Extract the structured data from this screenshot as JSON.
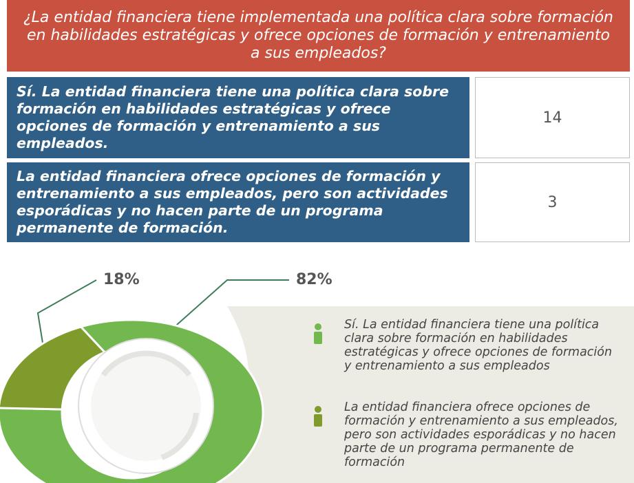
{
  "table": {
    "header": "¿La entidad financiera tiene implementada una política clara sobre formación en habilidades estratégicas y ofrece opciones de formación y entrenamiento a sus empleados?",
    "rows": [
      [
        "Sí. La entidad financiera tiene una política clara sobre formación en habilidades estratégicas y ofrece opciones de formación y entrenamiento a sus empleados.",
        14
      ],
      [
        "La entidad financiera ofrece opciones de formación y entrenamiento a sus empleados, pero son actividades esporádicas y no hacen parte de un programa permanente de formación.",
        3
      ]
    ]
  },
  "chart_data": {
    "type": "donut",
    "categories": [
      "Sí. La entidad financiera tiene una política clara sobre formación en habilidades estratégicas y ofrece opciones de formación y entrenamiento a sus empleados",
      "La entidad financiera ofrece opciones de formación y entrenamiento a sus empleados, pero son actividades esporádicas y no hacen parte de un programa permanente de formación"
    ],
    "values": [
      82,
      18
    ],
    "value_labels": [
      "82%",
      "18%"
    ],
    "colors": [
      "#72b84f",
      "#7f9b2b"
    ]
  }
}
